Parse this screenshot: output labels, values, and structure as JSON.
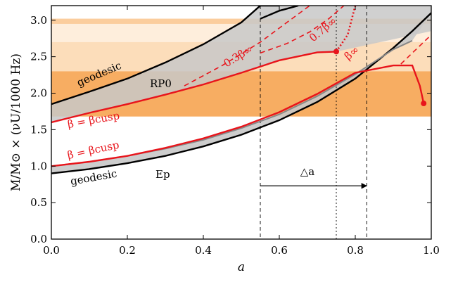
{
  "chart_data": {
    "type": "line",
    "xlabel": "a",
    "ylabel": "M/M⊙ × (νU/1000 Hz)",
    "xlim": [
      0.0,
      1.0
    ],
    "ylim": [
      0.0,
      3.2
    ],
    "x_ticks": [
      "0.0",
      "0.2",
      "0.4",
      "0.6",
      "0.8",
      "1.0"
    ],
    "y_ticks": [
      "0.0",
      "0.5",
      "1.0",
      "1.5",
      "2.0",
      "2.5",
      "3.0"
    ],
    "grid": false,
    "bands": [
      {
        "y": [
          2.95,
          3.02
        ],
        "color": "#f7ad62",
        "opacity": 1.0
      },
      {
        "y": [
          2.7,
          3.02
        ],
        "color": "#fde2c4",
        "opacity": 0.6
      },
      {
        "y": [
          2.3,
          2.7
        ],
        "color": "#fbd1a3",
        "opacity": 0.75
      },
      {
        "y": [
          1.68,
          2.3
        ],
        "color": "#f7ad62",
        "opacity": 1.0
      }
    ],
    "series": [
      {
        "style": "geodesic-upper",
        "color": "#000000",
        "x": [
          0.0,
          0.1,
          0.2,
          0.3,
          0.4,
          0.5,
          0.55,
          0.6
        ],
        "y": [
          1.85,
          2.02,
          2.2,
          2.42,
          2.67,
          2.97,
          3.2,
          3.2
        ]
      },
      {
        "style": "rp0-upper-bound",
        "color": "#000000",
        "x": [
          0.55,
          0.6,
          0.65
        ],
        "y": [
          3.02,
          3.13,
          3.2
        ]
      },
      {
        "style": "geodesic-lower",
        "color": "#000000",
        "x": [
          0.0,
          0.1,
          0.2,
          0.3,
          0.4,
          0.5,
          0.6,
          0.7,
          0.8,
          0.9,
          0.95,
          1.0
        ],
        "y": [
          0.9,
          0.96,
          1.04,
          1.14,
          1.27,
          1.43,
          1.63,
          1.88,
          2.2,
          2.62,
          2.85,
          3.1
        ]
      },
      {
        "style": "ep-upper-gray",
        "color": "#888888",
        "x": [
          0.0,
          0.1,
          0.2,
          0.3,
          0.4,
          0.5,
          0.6,
          0.7,
          0.8,
          0.9,
          0.95
        ],
        "y": [
          1.0,
          1.06,
          1.14,
          1.24,
          1.36,
          1.52,
          1.71,
          1.96,
          2.26,
          2.6,
          2.72
        ]
      },
      {
        "style": "beta-cusp-upper",
        "color": "#e8141b",
        "x": [
          0.0,
          0.1,
          0.2,
          0.3,
          0.4,
          0.5,
          0.6,
          0.7,
          0.75
        ],
        "y": [
          1.6,
          1.73,
          1.85,
          1.98,
          2.12,
          2.28,
          2.45,
          2.56,
          2.57
        ]
      },
      {
        "style": "beta-cusp-lower",
        "color": "#e8141b",
        "x": [
          0.0,
          0.1,
          0.2,
          0.3,
          0.4,
          0.5,
          0.6,
          0.7,
          0.8,
          0.9,
          0.95,
          0.97,
          0.98
        ],
        "y": [
          1.0,
          1.06,
          1.14,
          1.25,
          1.38,
          1.54,
          1.74,
          1.99,
          2.28,
          2.38,
          2.38,
          2.1,
          1.86
        ]
      },
      {
        "style": "beta-0.3-dashed",
        "color": "#e8141b",
        "x": [
          0.35,
          0.45,
          0.55,
          0.62,
          0.68
        ],
        "y": [
          2.1,
          2.38,
          2.7,
          2.97,
          3.2
        ]
      },
      {
        "style": "beta-0.7-dashed",
        "color": "#e8141b",
        "x": [
          0.55,
          0.62,
          0.68,
          0.73,
          0.77
        ],
        "y": [
          2.55,
          2.68,
          2.84,
          3.02,
          3.2
        ]
      },
      {
        "style": "beta-inf-dotted",
        "color": "#e8141b",
        "x": [
          0.75,
          0.78,
          0.8
        ],
        "y": [
          2.57,
          2.8,
          3.2
        ]
      },
      {
        "style": "right-dashed",
        "color": "#e8141b",
        "x": [
          0.92,
          0.95,
          0.98,
          1.0
        ],
        "y": [
          2.4,
          2.55,
          2.7,
          2.8
        ]
      }
    ],
    "markers": [
      {
        "x": 0.75,
        "y": 2.57,
        "color": "#e8141b"
      },
      {
        "x": 0.98,
        "y": 1.86,
        "color": "#e8141b"
      }
    ],
    "vlines": [
      {
        "x": 0.55,
        "style": "dashed"
      },
      {
        "x": 0.75,
        "style": "dotted"
      },
      {
        "x": 0.83,
        "style": "dashed"
      }
    ],
    "arrow": {
      "x0": 0.55,
      "x1": 0.83,
      "y": 0.73,
      "label": "△a"
    },
    "annotations": {
      "geodesic_upper": "geodesic",
      "rp0": "RP0",
      "beta_cusp_upper": "β = βcusp",
      "beta_cusp_lower": "β = βcusp",
      "geodesic_lower": "geodesic",
      "ep": "Ep",
      "beta_03": "0.3β∞",
      "beta_07": "0.7β∞",
      "beta_inf": "β∞"
    }
  }
}
